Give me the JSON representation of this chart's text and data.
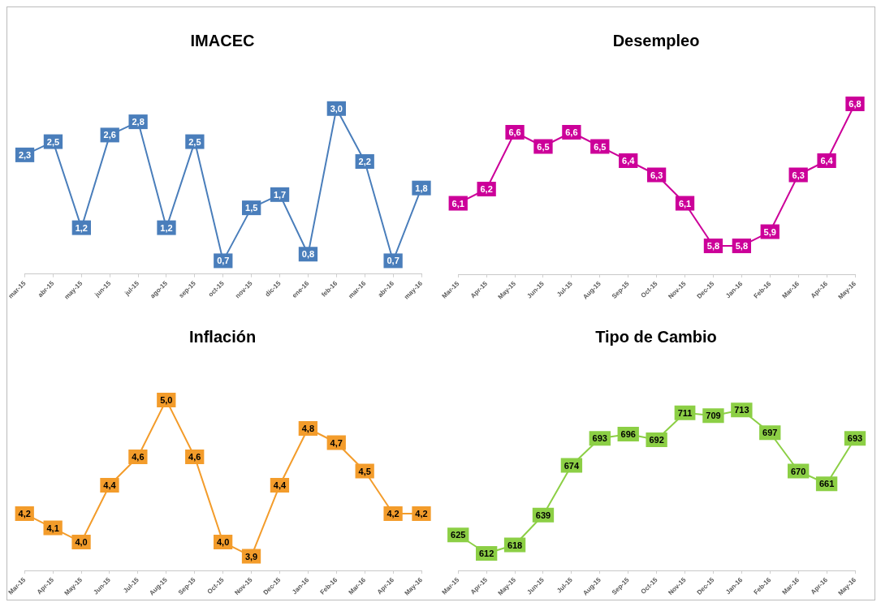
{
  "chart_data": [
    {
      "type": "line",
      "title": "IMACEC",
      "categories": [
        "mar-15",
        "abr-15",
        "may-15",
        "jun-15",
        "jul-15",
        "ago-15",
        "sep-15",
        "oct-15",
        "nov-15",
        "dic-15",
        "ene-16",
        "feb-16",
        "mar-16",
        "abr-16",
        "may-16"
      ],
      "values": [
        2.3,
        2.5,
        1.2,
        2.6,
        2.8,
        1.2,
        2.5,
        0.7,
        1.5,
        1.7,
        0.8,
        3.0,
        2.2,
        0.7,
        1.8
      ],
      "value_labels": [
        "2,3",
        "2,5",
        "1,2",
        "2,6",
        "2,8",
        "1,2",
        "2,5",
        "0,7",
        "1,5",
        "1,7",
        "0,8",
        "3,0",
        "2,2",
        "0,7",
        "1,8"
      ],
      "color": "#4a7ebb",
      "tick_labels": "x",
      "grid": false,
      "marker": "square"
    },
    {
      "type": "line",
      "title": "Desempleo",
      "categories": [
        "Mar-15",
        "Apr-15",
        "May-15",
        "Jun-15",
        "Jul-15",
        "Aug-15",
        "Sep-15",
        "Oct-15",
        "Nov-15",
        "Dec-15",
        "Jan-16",
        "Feb-16",
        "Mar-16",
        "Apr-16",
        "May-16"
      ],
      "values": [
        6.1,
        6.2,
        6.6,
        6.5,
        6.6,
        6.5,
        6.4,
        6.3,
        6.1,
        5.8,
        5.8,
        5.9,
        6.3,
        6.4,
        6.8
      ],
      "value_labels": [
        "6,1",
        "6,2",
        "6,6",
        "6,5",
        "6,6",
        "6,5",
        "6,4",
        "6,3",
        "6,1",
        "5,8",
        "5,8",
        "5,9",
        "6,3",
        "6,4",
        "6,8"
      ],
      "color": "#cc0099",
      "tick_labels": "x",
      "grid": false,
      "marker": "square"
    },
    {
      "type": "line",
      "title": "Inflación",
      "categories": [
        "Mar-15",
        "Apr-15",
        "May-15",
        "Jun-15",
        "Jul-15",
        "Aug-15",
        "Sep-15",
        "Oct-15",
        "Nov-15",
        "Dec-15",
        "Jan-16",
        "Feb-16",
        "Mar-16",
        "Apr-16",
        "May-16"
      ],
      "values": [
        4.2,
        4.1,
        4.0,
        4.4,
        4.6,
        5.0,
        4.6,
        4.0,
        3.9,
        4.4,
        4.8,
        4.7,
        4.5,
        4.2,
        4.2
      ],
      "value_labels": [
        "4,2",
        "4,1",
        "4,0",
        "4,4",
        "4,6",
        "5,0",
        "4,6",
        "4,0",
        "3,9",
        "4,4",
        "4,8",
        "4,7",
        "4,5",
        "4,2",
        "4,2"
      ],
      "color": "#f39c2b",
      "tick_labels": "x",
      "grid": false,
      "marker": "square"
    },
    {
      "type": "line",
      "title": "Tipo de Cambio",
      "categories": [
        "Mar-15",
        "Apr-15",
        "May-15",
        "Jun-15",
        "Jul-15",
        "Aug-15",
        "Sep-15",
        "Oct-15",
        "Nov-15",
        "Dec-15",
        "Jan-16",
        "Feb-16",
        "Mar-16",
        "Apr-16",
        "May-16"
      ],
      "values": [
        625,
        612,
        618,
        639,
        674,
        693,
        696,
        692,
        711,
        709,
        713,
        697,
        670,
        661,
        693
      ],
      "data_labels": true,
      "color": "#8ccf45",
      "tick_labels": "x",
      "grid": false,
      "marker": "square"
    }
  ]
}
